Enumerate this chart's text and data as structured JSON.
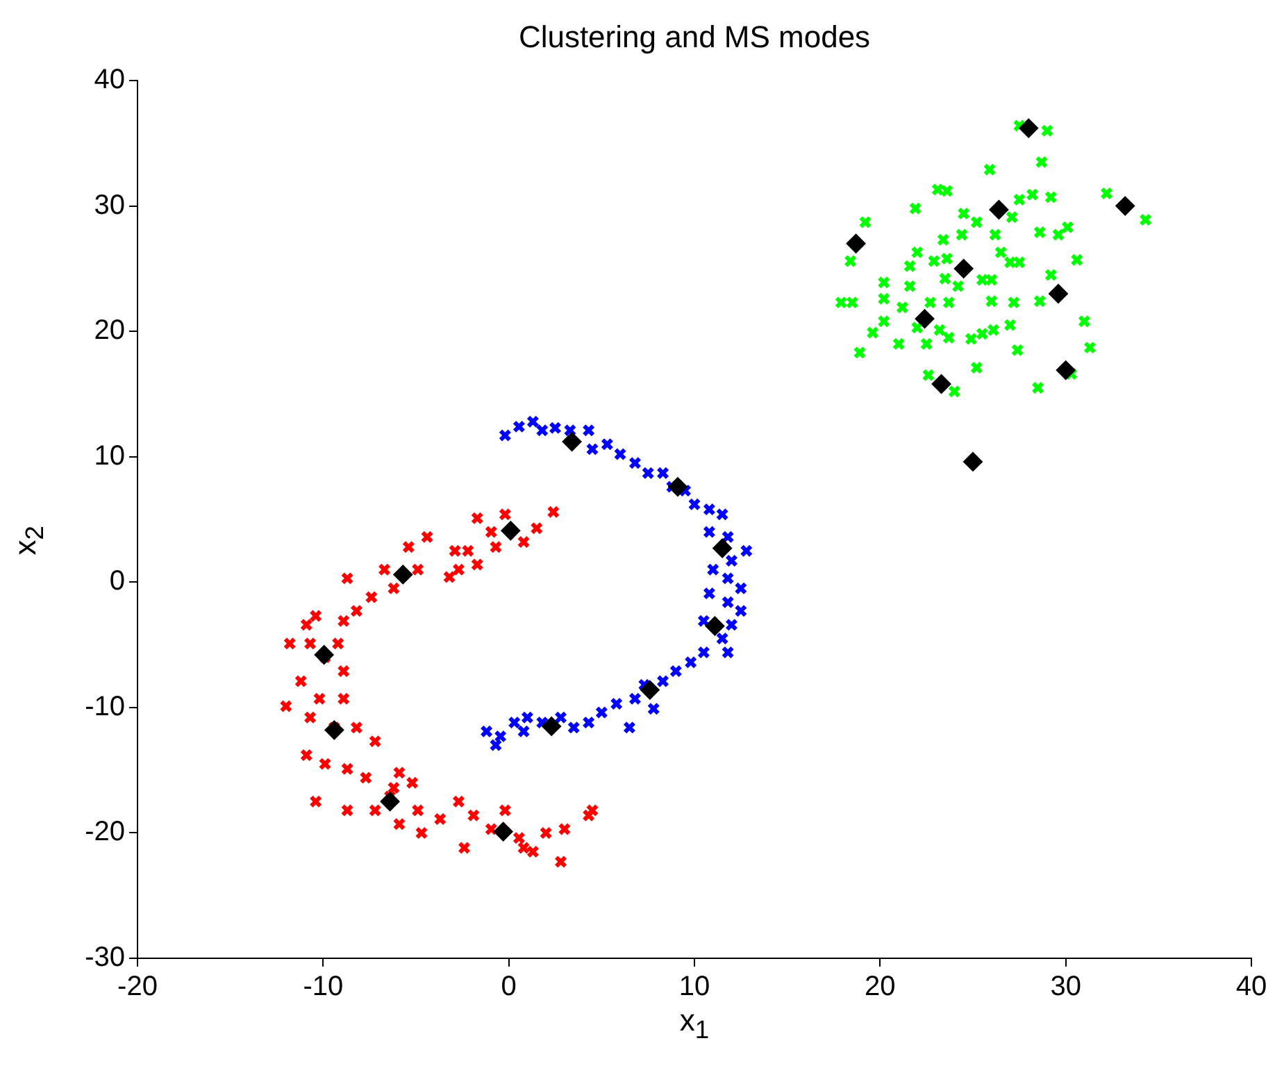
{
  "chart_data": {
    "type": "scatter",
    "title": "Clustering and MS modes",
    "xlabel": "x$_{1}$",
    "ylabel": "x$_{2}$",
    "xlim": [
      -20,
      40
    ],
    "xticks": [
      -20,
      -10,
      0,
      10,
      20,
      30,
      40
    ],
    "ylim": [
      -30,
      40
    ],
    "yticks": [
      -30,
      -20,
      -10,
      0,
      10,
      20,
      30,
      40
    ],
    "grid": false,
    "legend": false,
    "series": [
      {
        "color": "#ff0000",
        "marker": "cross",
        "x": [
          2.4,
          1.5,
          0.8,
          -0.2,
          -0.95,
          -1.7,
          -0.7,
          -2.2,
          -2.9,
          -2.7,
          -1.7,
          -3.2,
          -4.4,
          -5.4,
          -4.9,
          -6.7,
          -6.2,
          -7.4,
          -8.7,
          -8.2,
          -8.9,
          -10.4,
          -10.9,
          -9.2,
          -10.7,
          -11.8,
          -9.9,
          -8.9,
          -11.2,
          -10.2,
          -8.9,
          -12.0,
          -10.7,
          -9.4,
          -8.2,
          -7.2,
          -10.9,
          -9.9,
          -8.7,
          -7.7,
          -5.9,
          -5.2,
          -6.4,
          -8.7,
          -10.4,
          -7.2,
          -5.9,
          -4.7,
          -3.7,
          -2.7,
          -1.9,
          -0.95,
          -0.2,
          0.55,
          1.3,
          2.0,
          3.0,
          4.3,
          4.5,
          2.8,
          0.8,
          -2.4,
          -4.9,
          -6.2
        ],
        "values": [
          5.6,
          4.3,
          3.2,
          5.4,
          4.0,
          5.1,
          2.8,
          2.5,
          2.5,
          1.0,
          1.4,
          0.4,
          3.6,
          2.8,
          1.0,
          1.0,
          -0.5,
          -1.2,
          0.3,
          -2.3,
          -3.1,
          -2.7,
          -3.4,
          -4.9,
          -4.9,
          -4.9,
          -6.0,
          -7.1,
          -7.9,
          -9.3,
          -9.3,
          -9.9,
          -10.8,
          -11.6,
          -11.6,
          -12.7,
          -13.8,
          -14.5,
          -14.9,
          -15.6,
          -15.2,
          -16.0,
          -17.1,
          -18.2,
          -17.5,
          -18.2,
          -19.3,
          -20.0,
          -18.9,
          -17.5,
          -18.6,
          -19.7,
          -18.2,
          -20.4,
          -21.5,
          -20.0,
          -19.7,
          -18.6,
          -18.2,
          -22.3,
          -21.2,
          -21.2,
          -18.2,
          -16.4
        ]
      },
      {
        "color": "#0000ff",
        "marker": "cross",
        "x": [
          -0.2,
          0.55,
          1.3,
          1.8,
          2.5,
          3.3,
          4.3,
          4.5,
          5.3,
          6.0,
          6.8,
          7.5,
          8.3,
          8.8,
          9.5,
          10.0,
          10.8,
          11.5,
          10.8,
          11.8,
          12.8,
          12.0,
          11.0,
          11.8,
          12.5,
          10.8,
          11.8,
          12.5,
          10.5,
          12.0,
          11.5,
          11.8,
          10.5,
          9.8,
          9.0,
          8.3,
          7.3,
          6.8,
          7.8,
          6.5,
          5.8,
          5.0,
          4.3,
          3.5,
          2.8,
          1.8,
          1.0,
          0.3,
          -0.45,
          -1.2,
          -0.7,
          0.8
        ],
        "values": [
          11.7,
          12.4,
          12.8,
          12.1,
          12.3,
          12.1,
          12.1,
          10.6,
          11.0,
          10.2,
          9.5,
          8.7,
          8.7,
          7.6,
          7.3,
          6.2,
          5.8,
          5.4,
          4.0,
          3.6,
          2.5,
          1.7,
          1.0,
          0.3,
          -0.5,
          -0.9,
          -1.6,
          -2.3,
          -3.1,
          -3.4,
          -4.5,
          -5.6,
          -5.6,
          -6.4,
          -7.1,
          -7.9,
          -8.2,
          -9.3,
          -10.1,
          -11.6,
          -9.7,
          -10.4,
          -11.2,
          -11.6,
          -10.8,
          -11.2,
          -10.8,
          -11.2,
          -12.3,
          -11.9,
          -13.0,
          -11.9
        ]
      },
      {
        "color": "#00ff00",
        "marker": "cross",
        "x": [
          27.5,
          29.0,
          28.7,
          25.9,
          23.1,
          23.6,
          28.2,
          29.2,
          32.2,
          34.3,
          27.5,
          21.9,
          19.2,
          24.5,
          25.2,
          27.1,
          28.6,
          29.6,
          30.1,
          26.2,
          24.4,
          23.4,
          18.4,
          22.0,
          21.6,
          22.9,
          23.6,
          26.5,
          27.0,
          27.5,
          30.6,
          29.2,
          20.2,
          21.6,
          23.5,
          24.2,
          25.5,
          26.0,
          17.9,
          18.5,
          20.2,
          21.2,
          22.7,
          23.7,
          26.0,
          27.2,
          28.6,
          20.2,
          19.6,
          22.0,
          23.2,
          23.7,
          22.5,
          21.0,
          24.9,
          25.5,
          26.1,
          27.0,
          31.0,
          18.9,
          27.4,
          25.2,
          31.3,
          22.6,
          24.0,
          28.5,
          30.3
        ],
        "values": [
          36.4,
          36.0,
          33.5,
          32.9,
          31.3,
          31.2,
          30.9,
          30.7,
          31.0,
          28.9,
          30.5,
          29.8,
          28.7,
          29.4,
          28.7,
          29.1,
          27.9,
          27.7,
          28.3,
          27.7,
          27.7,
          27.3,
          25.6,
          26.3,
          25.2,
          25.6,
          25.8,
          26.3,
          25.5,
          25.5,
          25.7,
          24.5,
          23.9,
          23.6,
          24.2,
          23.6,
          24.1,
          24.1,
          22.3,
          22.3,
          22.6,
          21.9,
          22.3,
          22.3,
          22.4,
          22.3,
          22.4,
          20.8,
          19.9,
          20.3,
          20.1,
          19.5,
          19.0,
          19.0,
          19.4,
          19.8,
          20.1,
          20.5,
          20.8,
          18.3,
          18.5,
          17.1,
          18.7,
          16.5,
          15.2,
          15.5,
          16.6
        ]
      },
      {
        "color": "#000000",
        "marker": "diamond",
        "x": [
          -9.95,
          -9.4,
          -6.4,
          -0.3,
          -5.7,
          0.1,
          3.4,
          9.1,
          11.5,
          11.1,
          7.6,
          2.3,
          18.7,
          22.4,
          23.3,
          24.5,
          26.4,
          28.0,
          29.6,
          30.0,
          33.2,
          25.0
        ],
        "values": [
          -5.8,
          -11.8,
          -17.5,
          -19.9,
          0.6,
          4.1,
          11.2,
          7.6,
          2.7,
          -3.5,
          -8.6,
          -11.5,
          27.0,
          21.0,
          15.8,
          25.0,
          29.7,
          36.2,
          23.0,
          16.9,
          30.0,
          9.6
        ]
      }
    ]
  }
}
